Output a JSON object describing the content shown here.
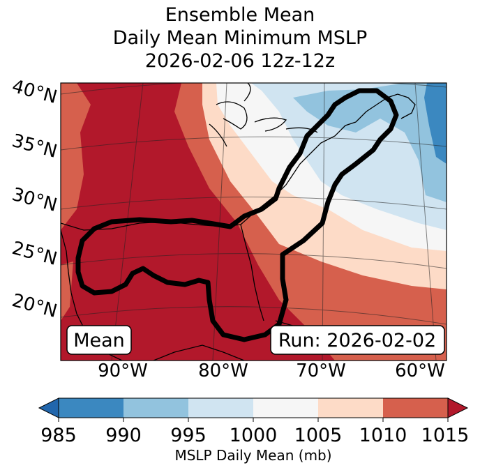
{
  "title": {
    "line1": "Ensemble Mean",
    "line2": "Daily Mean Minimum MSLP",
    "line3": "2026-02-06 12z-12z"
  },
  "map": {
    "lat_labels": [
      "40°N",
      "35°N",
      "30°N",
      "25°N",
      "20°N"
    ],
    "lon_labels": [
      "90°W",
      "80°W",
      "70°W",
      "60°W"
    ],
    "mean_box": "Mean",
    "run_box": "Run: 2026-02-02",
    "colors": {
      "c985": "#3b88c0",
      "c990": "#92c3de",
      "c995": "#d0e4f1",
      "c1000": "#f6f6f6",
      "c1005": "#fddbc7",
      "c1010": "#d6604d",
      "c1015": "#b2182b"
    }
  },
  "colorbar": {
    "ticks": [
      "985",
      "990",
      "995",
      "1000",
      "1005",
      "1010",
      "1015"
    ],
    "label": "MSLP Daily Mean (mb)"
  }
}
